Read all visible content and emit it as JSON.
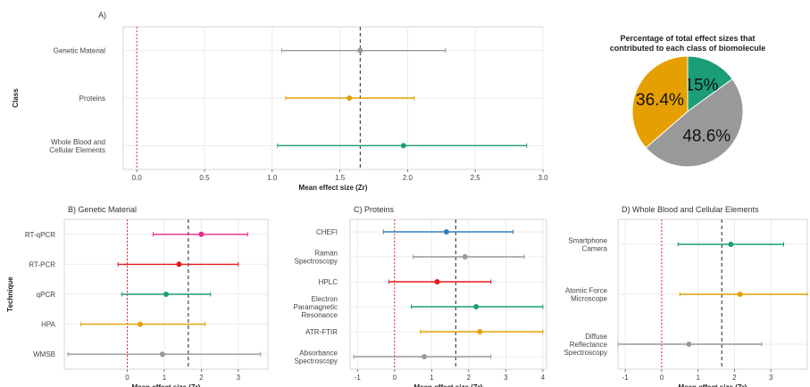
{
  "colors": {
    "red": "#e41a1c",
    "orange": "#e69f00",
    "teal": "#1b9e77",
    "gray": "#999999",
    "blue": "#377eb8",
    "pink": "#e7298a",
    "grid": "#ebebeb",
    "panel_border": "#cccccc"
  },
  "chart_data": [
    {
      "id": "A",
      "type": "scatter",
      "subtype": "forest-plot",
      "panel_label": "A)",
      "xlabel": "Mean effect size (Zr)",
      "ylabel": "Class",
      "xlim": [
        -0.1,
        3.0
      ],
      "x_ticks": [
        "0.0",
        "0.5",
        "1.0",
        "1.5",
        "2.0",
        "2.5",
        "3.0"
      ],
      "reference_lines": [
        {
          "x": 0,
          "style": "dotted",
          "color": "red"
        },
        {
          "x": 1.65,
          "style": "dashed",
          "color": "black"
        }
      ],
      "grid": true,
      "rows": [
        {
          "label": "Genetic Material",
          "mean": 1.65,
          "lower": 1.07,
          "upper": 2.28,
          "color": "gray"
        },
        {
          "label": "Proteins",
          "mean": 1.57,
          "lower": 1.1,
          "upper": 2.05,
          "color": "orange"
        },
        {
          "label": "Whole Blood and Cellular Elements",
          "label_lines": [
            "Whole Blood and",
            "Cellular Elements"
          ],
          "mean": 1.97,
          "lower": 1.04,
          "upper": 2.88,
          "color": "teal"
        }
      ]
    },
    {
      "id": "pie",
      "type": "pie",
      "title_lines": [
        "Percentage of total effect sizes that",
        "contributed to each class of biomolecule"
      ],
      "slices": [
        {
          "label": "15%",
          "value": 15.0,
          "color": "teal"
        },
        {
          "label": "48.6%",
          "value": 48.6,
          "color": "gray"
        },
        {
          "label": "36.4%",
          "value": 36.4,
          "color": "orange"
        }
      ]
    },
    {
      "id": "B",
      "type": "scatter",
      "subtype": "forest-plot",
      "panel_label": "B) Genetic Material",
      "xlabel": "Mean effect size (Zr)",
      "ylabel": "Technique",
      "xlim": [
        -1.7,
        3.8
      ],
      "x_ticks": [
        "0",
        "1",
        "2",
        "3"
      ],
      "reference_lines": [
        {
          "x": 0,
          "style": "dotted",
          "color": "red"
        },
        {
          "x": 1.65,
          "style": "dashed",
          "color": "black"
        }
      ],
      "grid": true,
      "rows": [
        {
          "label": "RT-qPCR",
          "mean": 2.0,
          "lower": 0.7,
          "upper": 3.25,
          "color": "pink"
        },
        {
          "label": "RT-PCR",
          "mean": 1.4,
          "lower": -0.25,
          "upper": 3.0,
          "color": "red"
        },
        {
          "label": "qPCR",
          "mean": 1.05,
          "lower": -0.15,
          "upper": 2.25,
          "color": "teal"
        },
        {
          "label": "HPA",
          "mean": 0.35,
          "lower": -1.25,
          "upper": 2.1,
          "color": "orange"
        },
        {
          "label": "WMSB",
          "mean": 0.95,
          "lower": -1.6,
          "upper": 3.6,
          "color": "gray"
        }
      ]
    },
    {
      "id": "C",
      "type": "scatter",
      "subtype": "forest-plot",
      "panel_label": "C) Proteins",
      "xlabel": "Mean effect size (Zr)",
      "ylabel": "",
      "xlim": [
        -1.2,
        4.1
      ],
      "x_ticks": [
        "-1",
        "0",
        "1",
        "2",
        "3",
        "4"
      ],
      "reference_lines": [
        {
          "x": 0,
          "style": "dotted",
          "color": "red"
        },
        {
          "x": 1.65,
          "style": "dashed",
          "color": "black"
        }
      ],
      "grid": true,
      "rows": [
        {
          "label": "CHEFI",
          "mean": 1.4,
          "lower": -0.3,
          "upper": 3.2,
          "color": "blue"
        },
        {
          "label": "Raman Spectroscopy",
          "label_lines": [
            "Raman",
            "Spectroscopy"
          ],
          "mean": 1.9,
          "lower": 0.5,
          "upper": 3.5,
          "color": "gray"
        },
        {
          "label": "HPLC",
          "mean": 1.15,
          "lower": -0.15,
          "upper": 2.6,
          "color": "red"
        },
        {
          "label": "Electron Paramagnetic Resonance",
          "label_lines": [
            "Electron",
            "Paramagnetic",
            "Resonance"
          ],
          "mean": 2.2,
          "lower": 0.45,
          "upper": 4.0,
          "color": "teal"
        },
        {
          "label": "ATR-FTIR",
          "mean": 2.3,
          "lower": 0.7,
          "upper": 4.0,
          "color": "orange"
        },
        {
          "label": "Absorbance Spectroscopy",
          "label_lines": [
            "Absorbance",
            "Spectroscopy"
          ],
          "mean": 0.8,
          "lower": -1.1,
          "upper": 2.6,
          "color": "gray"
        }
      ]
    },
    {
      "id": "D",
      "type": "scatter",
      "subtype": "forest-plot",
      "panel_label": "D) Whole Blood and Cellular Elements",
      "xlabel": "Mean effect size (Zr)",
      "ylabel": "",
      "xlim": [
        -1.2,
        4.0
      ],
      "x_ticks": [
        "-1",
        "0",
        "1",
        "2",
        "3"
      ],
      "reference_lines": [
        {
          "x": 0,
          "style": "dotted",
          "color": "red"
        },
        {
          "x": 1.65,
          "style": "dashed",
          "color": "black"
        }
      ],
      "grid": true,
      "rows": [
        {
          "label": "Smartphone Camera",
          "label_lines": [
            "Smartphone",
            "Camera"
          ],
          "mean": 1.9,
          "lower": 0.45,
          "upper": 3.35,
          "color": "teal"
        },
        {
          "label": "Atomic Force Microscope",
          "label_lines": [
            "Atomic Force",
            "Microscope"
          ],
          "mean": 2.15,
          "lower": 0.5,
          "upper": 4.0,
          "color": "orange"
        },
        {
          "label": "Diffuse Reflectance Spectroscopy",
          "label_lines": [
            "Diffuse",
            "Reflectance",
            "Spectroscopy"
          ],
          "mean": 0.75,
          "lower": -1.2,
          "upper": 2.75,
          "color": "gray"
        }
      ]
    }
  ]
}
